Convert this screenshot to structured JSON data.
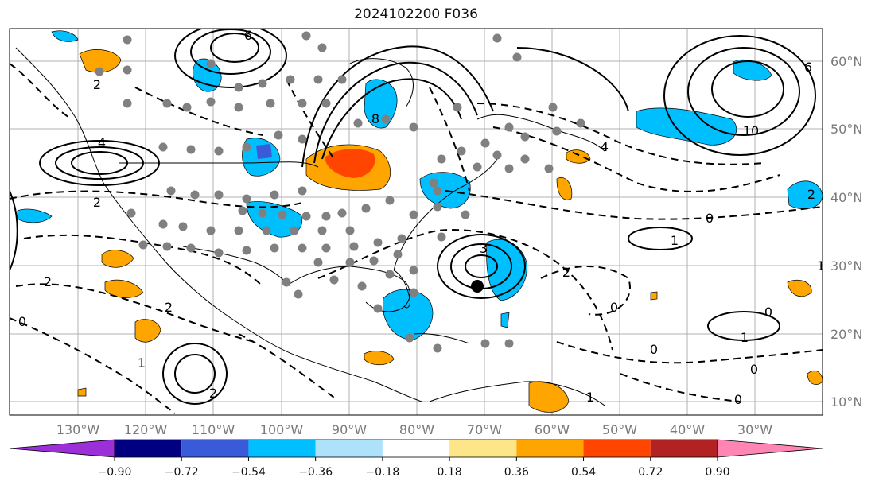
{
  "title": "2024102200 F036",
  "map": {
    "lon_labels": [
      "130°W",
      "120°W",
      "110°W",
      "100°W",
      "90°W",
      "80°W",
      "70°W",
      "60°W",
      "50°W",
      "40°W",
      "30°W"
    ],
    "lat_labels": [
      "60°N",
      "50°N",
      "40°N",
      "30°N",
      "20°N",
      "10°N"
    ],
    "contour_labels": [
      "6",
      "8",
      "2",
      "4",
      "2",
      "3",
      "4",
      "10",
      "6",
      "2",
      "1",
      "0",
      "2",
      "2",
      "0",
      "2",
      "0",
      "1",
      "1",
      "0",
      "0",
      "1",
      "0",
      "1",
      "0",
      "2"
    ]
  },
  "colorbar": {
    "ticks": [
      "−0.90",
      "−0.72",
      "−0.54",
      "−0.36",
      "−0.18",
      "0.18",
      "0.36",
      "0.54",
      "0.72",
      "0.90"
    ],
    "colors": [
      "#9b30d9",
      "#000080",
      "#3a5bd9",
      "#00bfff",
      "#aee1fa",
      "#ffffff",
      "#fde68a",
      "#ffa500",
      "#ff4500",
      "#b22222",
      "#ff85b4"
    ]
  },
  "colors": {
    "land_border": "#000000",
    "grid": "#b0b0b0",
    "blue_fill": "#00bfff",
    "orange_fill": "#ffa500",
    "red_fill": "#ff4500",
    "station_dot": "#808080"
  }
}
